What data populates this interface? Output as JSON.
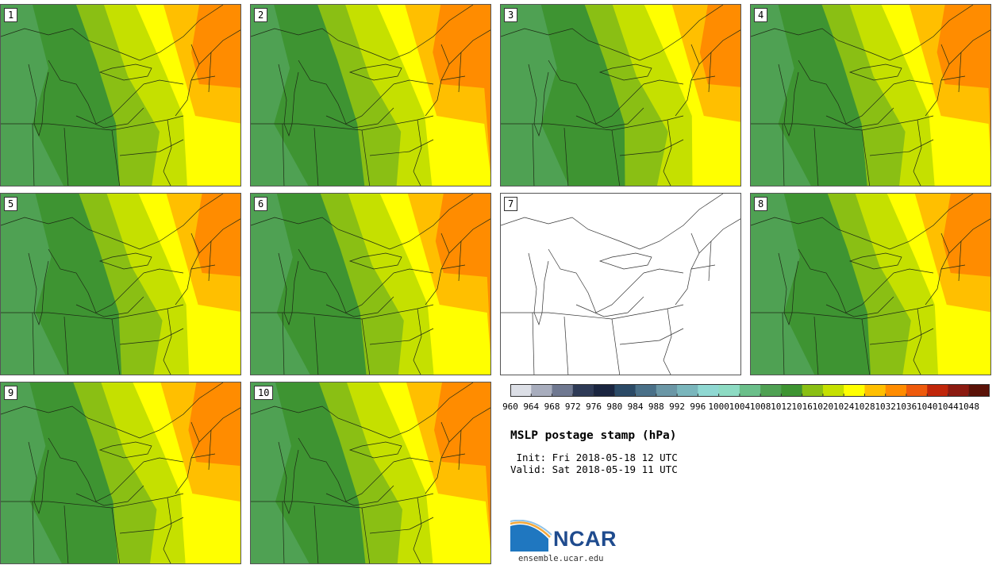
{
  "title": "MSLP postage stamp (hPa)",
  "init_text": " Init: Fri 2018-05-18 12 UTC",
  "valid_text": "Valid: Sat 2018-05-19 11 UTC",
  "logo_text": "NCAR",
  "site_text": "ensemble.ucar.edu",
  "members": [
    {
      "label": "1",
      "shift": 0.0,
      "has_data": true
    },
    {
      "label": "2",
      "shift": -0.6,
      "has_data": true
    },
    {
      "label": "3",
      "shift": 0.6,
      "has_data": true
    },
    {
      "label": "4",
      "shift": -0.3,
      "has_data": true
    },
    {
      "label": "5",
      "shift": 0.2,
      "has_data": true
    },
    {
      "label": "6",
      "shift": -0.4,
      "has_data": true
    },
    {
      "label": "7",
      "shift": 0.0,
      "has_data": false
    },
    {
      "label": "8",
      "shift": 0.1,
      "has_data": true
    },
    {
      "label": "9",
      "shift": -0.2,
      "has_data": true
    },
    {
      "label": "10",
      "shift": -0.5,
      "has_data": true
    }
  ],
  "colorbar": {
    "ticks": [
      "960",
      "964",
      "968",
      "972",
      "976",
      "980",
      "984",
      "988",
      "992",
      "996",
      "1000",
      "1004",
      "1008",
      "1012",
      "1016",
      "1020",
      "1024",
      "1028",
      "1032",
      "1036",
      "1040",
      "1044",
      "1048"
    ],
    "colors": [
      "#dcdfe6",
      "#a8adbd",
      "#6f7890",
      "#2e3a56",
      "#1a2540",
      "#2b4a66",
      "#4a7088",
      "#6b97a6",
      "#7ab6bc",
      "#8fd8d2",
      "#8ddbc3",
      "#6bbf8a",
      "#4fa153",
      "#3e9432",
      "#8abf14",
      "#c5e000",
      "#ffff00",
      "#ffbf00",
      "#ff8c00",
      "#ee5a0c",
      "#c0260a",
      "#8b1a10",
      "#5a1208"
    ]
  }
}
